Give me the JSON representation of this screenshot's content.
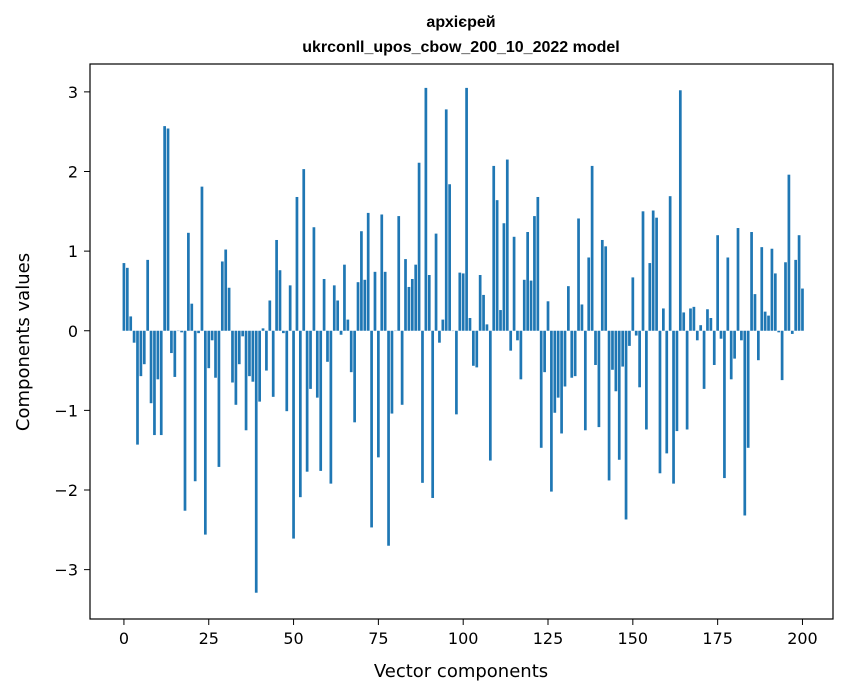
{
  "chart_data": {
    "type": "bar",
    "title": "архієрей",
    "subtitle": "ukrconll_upos_cbow_200_10_2022 model",
    "xlabel": "Vector components",
    "ylabel": "Components values",
    "xlim": [
      -10,
      209
    ],
    "ylim": [
      -3.62,
      3.35
    ],
    "xticks": [
      0,
      25,
      50,
      75,
      100,
      125,
      150,
      175,
      200
    ],
    "yticks": [
      3,
      2,
      1,
      0,
      -1,
      -2,
      -3
    ],
    "ytick_labels": [
      "3",
      "2",
      "1",
      "0",
      "−1",
      "−2",
      "−3"
    ],
    "bar_color": "#1f77b4",
    "grid": false,
    "series": [
      {
        "values": [
          0.85,
          0.79,
          0.18,
          -0.15,
          -1.43,
          -0.57,
          -0.42,
          0.89,
          -0.91,
          -1.31,
          -0.61,
          -1.31,
          2.57,
          2.54,
          -0.28,
          -0.58,
          0.0,
          -0.02,
          -2.26,
          1.23,
          0.34,
          -1.89,
          -0.03,
          1.81,
          -2.56,
          -0.47,
          -0.12,
          -0.59,
          -1.71,
          0.87,
          1.02,
          0.54,
          -0.65,
          -0.93,
          -0.42,
          -0.07,
          -1.25,
          -0.57,
          -0.64,
          -3.29,
          -0.89,
          0.03,
          -0.5,
          0.38,
          -0.83,
          1.14,
          0.76,
          -0.03,
          -1.01,
          0.57,
          -2.61,
          1.68,
          -2.09,
          2.03,
          -1.77,
          -0.73,
          1.3,
          -0.84,
          -1.76,
          0.65,
          -0.39,
          -1.92,
          0.57,
          0.38,
          -0.05,
          0.83,
          0.14,
          -0.52,
          -1.15,
          0.61,
          1.25,
          0.64,
          1.48,
          -2.47,
          0.74,
          -1.59,
          1.46,
          0.74,
          -2.7,
          -1.04,
          0.0,
          1.44,
          -0.93,
          0.9,
          0.55,
          0.65,
          0.83,
          2.11,
          -1.91,
          3.05,
          0.7,
          -2.1,
          1.22,
          -0.15,
          0.14,
          2.78,
          1.84,
          0.0,
          -1.05,
          0.73,
          0.72,
          3.05,
          0.16,
          -0.44,
          -0.46,
          0.7,
          0.45,
          0.08,
          -1.63,
          2.07,
          1.64,
          0.26,
          1.35,
          2.15,
          -0.25,
          1.18,
          -0.12,
          -0.61,
          0.64,
          1.24,
          0.63,
          1.44,
          1.68,
          -1.47,
          -0.52,
          0.37,
          -2.02,
          -1.03,
          -0.84,
          -1.29,
          -0.7,
          0.56,
          -0.59,
          -0.57,
          1.41,
          0.33,
          -1.25,
          0.92,
          2.07,
          -0.43,
          -1.21,
          1.14,
          1.06,
          -1.88,
          -0.49,
          -0.76,
          -1.62,
          -0.45,
          -2.37,
          -0.19,
          0.67,
          -0.06,
          -0.71,
          1.5,
          -1.24,
          0.85,
          1.51,
          1.42,
          -1.79,
          0.28,
          -1.54,
          1.69,
          -1.92,
          -1.26,
          3.02,
          0.23,
          -1.24,
          0.28,
          0.3,
          -0.12,
          0.07,
          -0.73,
          0.27,
          0.16,
          -0.43,
          1.2,
          -0.1,
          -1.85,
          0.92,
          -0.61,
          -0.35,
          1.29,
          -0.12,
          -2.32,
          -1.47,
          1.24,
          0.46,
          -0.37,
          1.05,
          0.24,
          0.19,
          1.03,
          0.72,
          -0.02,
          -0.62,
          0.86,
          1.96,
          -0.04,
          0.89,
          1.2,
          0.53
        ]
      }
    ]
  }
}
